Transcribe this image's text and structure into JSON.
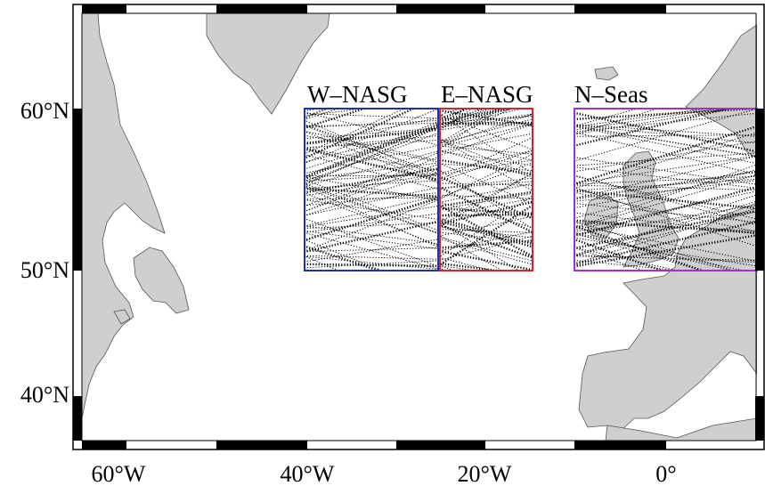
{
  "map": {
    "lon_range": [
      -65,
      10
    ],
    "lat_range": [
      35,
      66
    ],
    "land_color": "#cfcfcf",
    "coast_color": "#555555",
    "track_color": "#000000",
    "frame_colors": [
      "#000000",
      "#ffffff"
    ]
  },
  "axes": {
    "x_ticks": [
      {
        "lon": -60,
        "label": "60°W"
      },
      {
        "lon": -40,
        "label": "40°W"
      },
      {
        "lon": -20,
        "label": "20°W"
      },
      {
        "lon": 0,
        "label": "0°"
      }
    ],
    "y_ticks": [
      {
        "lat": 60,
        "label": "60°N"
      },
      {
        "lat": 50,
        "label": "50°N"
      },
      {
        "lat": 40,
        "label": "40°N"
      }
    ]
  },
  "regions": [
    {
      "name": "W–NASG",
      "lon": [
        -40,
        -25
      ],
      "lat": [
        50,
        60
      ],
      "color": "#1f2fb0"
    },
    {
      "name": "E–NASG",
      "lon": [
        -25,
        -15
      ],
      "lat": [
        50,
        60
      ],
      "color": "#d0252a"
    },
    {
      "name": "N–Seas",
      "lon": [
        -10,
        10
      ],
      "lat": [
        50,
        60
      ],
      "color": "#9b30d9"
    }
  ]
}
